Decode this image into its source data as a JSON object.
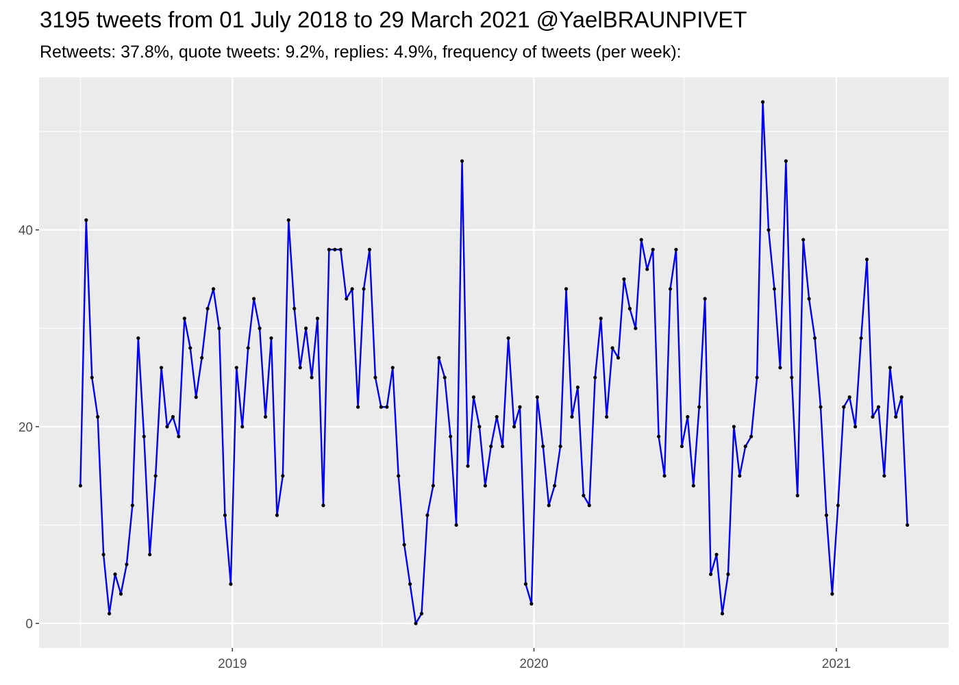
{
  "title": "3195 tweets from 01 July 2018 to 29 March 2021 @YaelBRAUNPIVET",
  "subtitle": "Retweets: 37.8%, quote tweets: 9.2%, replies: 4.9%, frequency of tweets (per week):",
  "chart_data": {
    "type": "line",
    "xlabel": "",
    "ylabel": "",
    "x_start": "2018-07-01",
    "x_interval_days": 7,
    "x_ticks": [
      "2019",
      "2020",
      "2021"
    ],
    "y_ticks": [
      "0",
      "20",
      "40"
    ],
    "ylim": [
      -2.5,
      55.5
    ],
    "grid": true,
    "line_color": "#0000ee",
    "point_color": "#000000",
    "panel_color": "#ebebeb",
    "series": [
      {
        "values": [
          14,
          41,
          25,
          21,
          7,
          1,
          5,
          3,
          6,
          12,
          29,
          19,
          7,
          15,
          26,
          20,
          21,
          19,
          31,
          28,
          23,
          27,
          32,
          34,
          30,
          11,
          4,
          26,
          20,
          28,
          33,
          30,
          21,
          29,
          11,
          15,
          41,
          32,
          26,
          30,
          25,
          31,
          12,
          38,
          38,
          38,
          33,
          34,
          22,
          34,
          38,
          25,
          22,
          22,
          26,
          15,
          8,
          4,
          0,
          1,
          11,
          14,
          27,
          25,
          19,
          10,
          47,
          16,
          23,
          20,
          14,
          18,
          21,
          18,
          29,
          20,
          22,
          4,
          2,
          23,
          18,
          12,
          14,
          18,
          34,
          21,
          24,
          13,
          12,
          25,
          31,
          21,
          28,
          27,
          35,
          32,
          30,
          39,
          36,
          38,
          19,
          15,
          34,
          38,
          18,
          21,
          14,
          22,
          33,
          5,
          7,
          1,
          5,
          20,
          15,
          18,
          19,
          25,
          53,
          40,
          34,
          26,
          47,
          25,
          13,
          39,
          33,
          29,
          22,
          11,
          3,
          12,
          22,
          23,
          20,
          29,
          37,
          21,
          22,
          15,
          26,
          21,
          23,
          10
        ]
      }
    ]
  }
}
